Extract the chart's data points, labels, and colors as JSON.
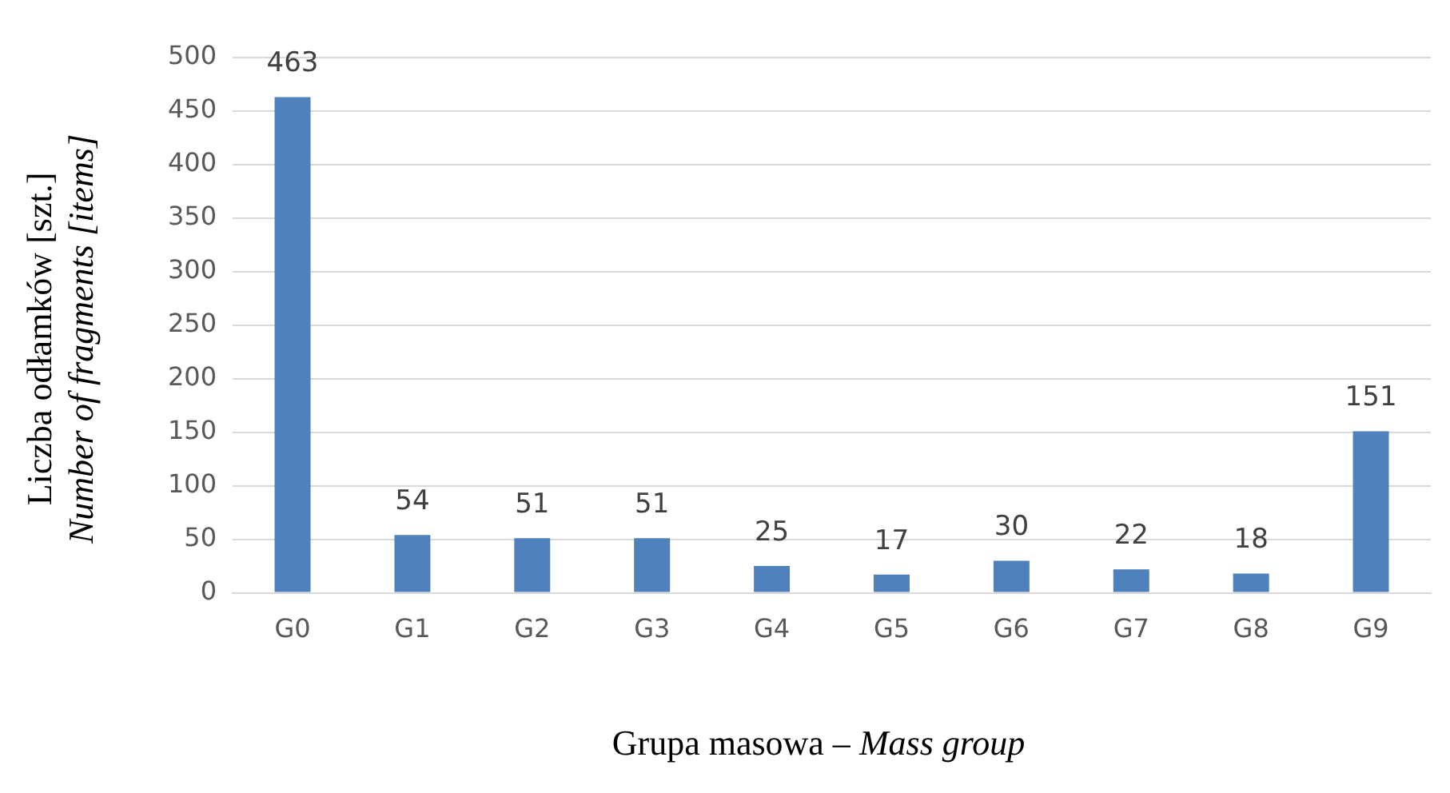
{
  "chart_data": {
    "type": "bar",
    "xlabel": "Grupa masowa – Mass group",
    "ylabel": "Liczba odłamków [szt.]\nNumber of fragments [items]",
    "categories": [
      "G0",
      "G1",
      "G2",
      "G3",
      "G4",
      "G5",
      "G6",
      "G7",
      "G8",
      "G9"
    ],
    "values": [
      463,
      54,
      51,
      51,
      25,
      17,
      30,
      22,
      18,
      151
    ],
    "color": "#4f81bd",
    "ylim": [
      0,
      500
    ],
    "yticks": [
      0,
      50,
      100,
      150,
      200,
      250,
      300,
      350,
      400,
      450,
      500
    ],
    "grid": "y",
    "data_labels": true,
    "legend": false
  }
}
